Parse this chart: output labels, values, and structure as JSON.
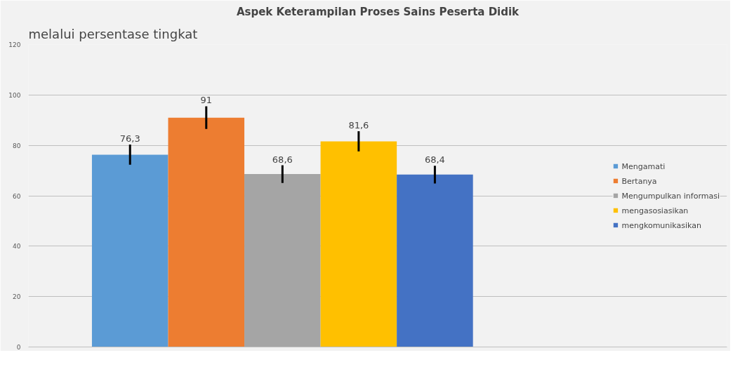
{
  "chart_data": {
    "type": "bar",
    "title": "Aspek Keterampilan Proses Sains Peserta Didik",
    "annotations": [
      "melalui persentase tingkat"
    ],
    "categories": [
      null
    ],
    "series": [
      {
        "name": "Mengamati",
        "color": "#5b9bd5",
        "values": [
          76.3
        ],
        "errors": [
          4
        ],
        "value_labels": [
          "76,3"
        ]
      },
      {
        "name": "Bertanya",
        "color": "#ed7d31",
        "values": [
          91
        ],
        "errors": [
          4.5
        ],
        "value_labels": [
          "91"
        ]
      },
      {
        "name": "Mengumpulkan informasi",
        "color": "#a5a5a5",
        "values": [
          68.6
        ],
        "errors": [
          3.5
        ],
        "value_labels": [
          "68,6"
        ]
      },
      {
        "name": "mengasosiasikan",
        "color": "#ffc000",
        "values": [
          81.6
        ],
        "errors": [
          4
        ],
        "value_labels": [
          "81,6"
        ]
      },
      {
        "name": "mengkomunikasikan",
        "color": "#4472c4",
        "values": [
          68.4
        ],
        "errors": [
          3.5
        ],
        "value_labels": [
          "68,4"
        ]
      }
    ],
    "ylim": [
      0,
      120
    ],
    "yticks": [
      0,
      20,
      40,
      60,
      80,
      100,
      120
    ],
    "grid": "y",
    "legend": "right"
  }
}
